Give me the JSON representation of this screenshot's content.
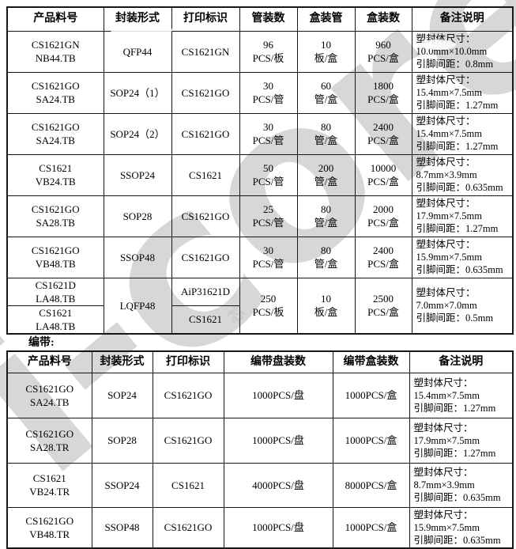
{
  "watermark": {
    "text": "i-core",
    "small_text": "芯",
    "color": "#a8a8a8"
  },
  "tape_label": "编带:",
  "table1": {
    "headers": [
      "产品料号",
      "封装形式",
      "打印标识",
      "管装数",
      "盒装管",
      "盒装数",
      "备注说明"
    ],
    "rows": [
      {
        "part": [
          "CS1621GN",
          "NB44.TB"
        ],
        "package": "QFP44",
        "marking": "CS1621GN",
        "tube_qty": [
          "96",
          "PCS/板"
        ],
        "tubes_per_box": [
          "10",
          "板/盒"
        ],
        "box_qty": [
          "960",
          "PCS/盒"
        ],
        "remark": [
          "塑封体尺寸：",
          "10.0mm×10.0mm",
          "引脚间距：0.8mm"
        ]
      },
      {
        "part": [
          "CS1621GO",
          "SA24.TB"
        ],
        "package": "SOP24（1）",
        "marking": "CS1621GO",
        "tube_qty": [
          "30",
          "PCS/管"
        ],
        "tubes_per_box": [
          "60",
          "管/盒"
        ],
        "box_qty": [
          "1800",
          "PCS/盒"
        ],
        "remark": [
          "塑封体尺寸：",
          "15.4mm×7.5mm",
          "引脚间距：1.27mm"
        ]
      },
      {
        "part": [
          "CS1621GO",
          "SA24.TB"
        ],
        "package": "SOP24（2）",
        "marking": "CS1621GO",
        "tube_qty": [
          "30",
          "PCS/管"
        ],
        "tubes_per_box": [
          "80",
          "管/盒"
        ],
        "box_qty": [
          "2400",
          "PCS/盒"
        ],
        "remark": [
          "塑封体尺寸：",
          "15.4mm×7.5mm",
          "引脚间距：1.27mm"
        ]
      },
      {
        "part": [
          "CS1621",
          "VB24.TB"
        ],
        "package": "SSOP24",
        "marking": "CS1621",
        "tube_qty": [
          "50",
          "PCS/管"
        ],
        "tubes_per_box": [
          "200",
          "管/盒"
        ],
        "box_qty": [
          "10000",
          "PCS/盒"
        ],
        "remark": [
          "塑封体尺寸：",
          "8.7mm×3.9mm",
          "引脚间距：0.635mm"
        ]
      },
      {
        "part": [
          "CS1621GO",
          "SA28.TB"
        ],
        "package": "SOP28",
        "marking": "CS1621GO",
        "tube_qty": [
          "25",
          "PCS/管"
        ],
        "tubes_per_box": [
          "80",
          "管/盒"
        ],
        "box_qty": [
          "2000",
          "PCS/盒"
        ],
        "remark": [
          "塑封体尺寸：",
          "17.9mm×7.5mm",
          "引脚间距：1.27mm"
        ]
      },
      {
        "part": [
          "CS1621GO",
          "VB48.TB"
        ],
        "package": "SSOP48",
        "marking": "CS1621GO",
        "tube_qty": [
          "30",
          "PCS/管"
        ],
        "tubes_per_box": [
          "80",
          "管/盒"
        ],
        "box_qty": [
          "2400",
          "PCS/盒"
        ],
        "remark": [
          "塑封体尺寸：",
          "15.9mm×7.5mm",
          "引脚间距：0.635mm"
        ]
      }
    ],
    "merged_row": {
      "parts": [
        [
          "CS1621D",
          "LA48.TB"
        ],
        [
          "CS1621",
          "LA48.TB"
        ]
      ],
      "package": "LQFP48",
      "markings": [
        "AiP31621D",
        "CS1621"
      ],
      "tube_qty": [
        "250",
        "PCS/板"
      ],
      "tubes_per_box": [
        "10",
        "板/盒"
      ],
      "box_qty": [
        "2500",
        "PCS/盒"
      ],
      "remark": [
        "塑封体尺寸：",
        "7.0mm×7.0mm",
        "引脚间距：0.5mm"
      ]
    }
  },
  "table2": {
    "headers": [
      "产品料号",
      "封装形式",
      "打印标识",
      "编带盘装数",
      "编带盒装数",
      "备注说明"
    ],
    "rows": [
      {
        "part": [
          "CS1621GO",
          "SA24.TB"
        ],
        "package": "SOP24",
        "marking": "CS1621GO",
        "reel_qty": "1000PCS/盘",
        "box_qty": "1000PCS/盒",
        "remark": [
          "塑封体尺寸：",
          "15.4mm×7.5mm",
          "引脚间距：1.27mm"
        ]
      },
      {
        "part": [
          "CS1621GO",
          "SA28.TR"
        ],
        "package": "SOP28",
        "marking": "CS1621GO",
        "reel_qty": "1000PCS/盘",
        "box_qty": "1000PCS/盒",
        "remark": [
          "塑封体尺寸：",
          "17.9mm×7.5mm",
          "引脚间距：1.27mm"
        ]
      },
      {
        "part": [
          "CS1621",
          "VB24.TR"
        ],
        "package": "SSOP24",
        "marking": "CS1621",
        "reel_qty": "4000PCS/盘",
        "box_qty": "8000PCS/盒",
        "remark": [
          "塑封体尺寸：",
          "8.7mm×3.9mm",
          "引脚间距：0.635mm"
        ]
      },
      {
        "part": [
          "CS1621GO",
          "VB48.TR"
        ],
        "package": "SSOP48",
        "marking": "CS1621GO",
        "reel_qty": "1000PCS/盘",
        "box_qty": "1000PCS/盒",
        "remark": [
          "塑封体尺寸：",
          "15.9mm×7.5mm",
          "引脚间距：0.635mm"
        ]
      }
    ]
  }
}
